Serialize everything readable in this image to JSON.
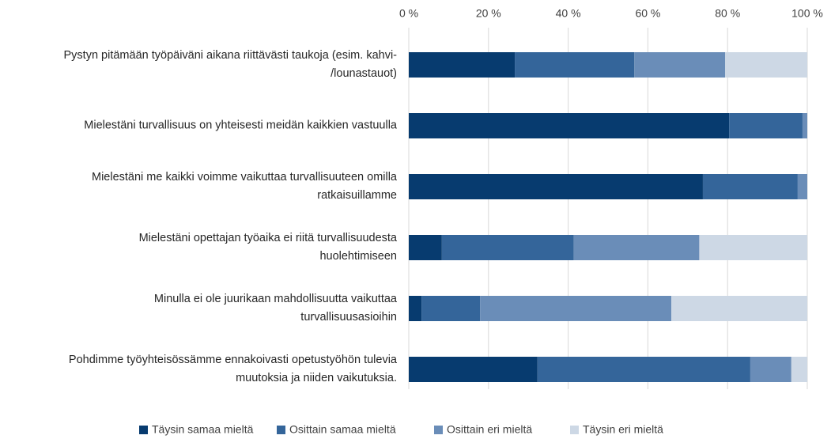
{
  "chart_data": {
    "type": "stacked-barh",
    "categories": [
      "Pystyn pitämään työpäiväni aikana riittävästi taukoja (esim. kahvi-\n/lounastauot)",
      "Mielestäni turvallisuus on yhteisesti meidän kaikkien vastuulla",
      "Mielestäni me kaikki voimme vaikuttaa turvallisuuteen omilla\nratkaisuillamme",
      "Mielestäni opettajan työaika ei riitä turvallisuudesta\nhuolehtimiseen",
      "Minulla ei ole juurikaan mahdollisuutta vaikuttaa\nturvallisuusasioihin",
      "Pohdimme työyhteisössämme ennakoivasti opetustyöhön tulevia\nmuutoksia ja niiden vaikutuksia."
    ],
    "series": [
      {
        "name": "Täysin samaa mieltä",
        "color": "#073b6f",
        "values": [
          26.6,
          80.4,
          73.8,
          8.3,
          3.2,
          32.3
        ]
      },
      {
        "name": "Osittain samaa mieltä",
        "color": "#34659a",
        "values": [
          30.0,
          18.4,
          23.8,
          33.1,
          14.7,
          53.4
        ]
      },
      {
        "name": "Osittain eri mieltä",
        "color": "#6a8db8",
        "values": [
          22.8,
          1.2,
          2.4,
          31.5,
          48.0,
          10.3
        ]
      },
      {
        "name": "Täysin eri mieltä",
        "color": "#cdd8e5",
        "values": [
          20.6,
          0,
          0,
          27.1,
          34.1,
          4.0
        ]
      }
    ],
    "xlim": [
      0,
      100
    ],
    "xticks": [
      {
        "value": 0,
        "label": "0 %"
      },
      {
        "value": 20,
        "label": "20 %"
      },
      {
        "value": 40,
        "label": "40 %"
      },
      {
        "value": 60,
        "label": "60 %"
      },
      {
        "value": 80,
        "label": "80 %"
      },
      {
        "value": 100,
        "label": "100 %"
      }
    ],
    "grid": true,
    "legend": "bottom"
  }
}
